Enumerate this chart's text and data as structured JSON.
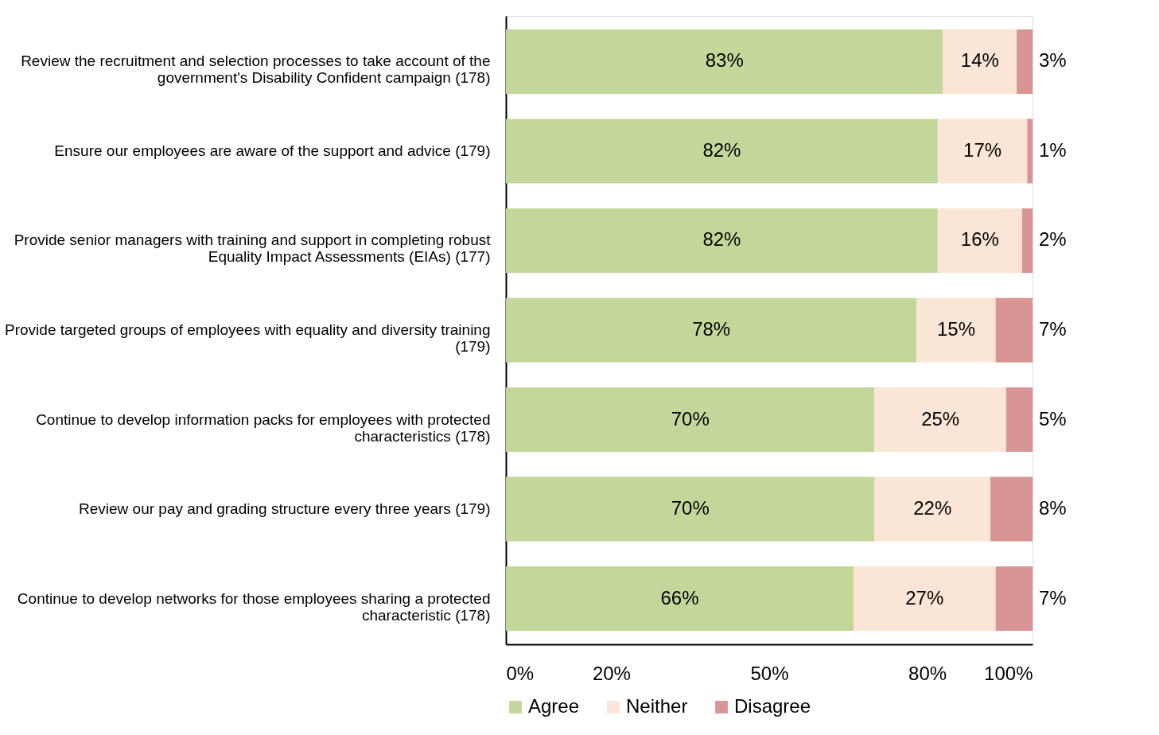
{
  "chart_data": {
    "type": "bar",
    "orientation": "horizontal",
    "stacked": true,
    "categories": [
      "Review the recruitment and selection processes to take account of the government's Disability Confident campaign (178)",
      "Ensure our employees are aware of the support and advice (179)",
      "Provide senior managers with training and support in completing robust Equality Impact Assessments (EIAs) (177)",
      "Provide targeted groups of employees with equality and diversity training (179)",
      "Continue to develop information packs for employees with protected characteristics (178)",
      "Review our pay and grading structure every three years (179)",
      "Continue to develop networks for those employees sharing a protected characteristic (178)"
    ],
    "series": [
      {
        "name": "Agree",
        "color": "#c4d79b",
        "values": [
          83,
          82,
          82,
          78,
          70,
          70,
          66
        ],
        "value_labels": [
          "83%",
          "82%",
          "82%",
          "78%",
          "70%",
          "70%",
          "66%"
        ]
      },
      {
        "name": "Neither",
        "color": "#fbe5d6",
        "values": [
          14,
          17,
          16,
          15,
          25,
          22,
          27
        ],
        "value_labels": [
          "14%",
          "17%",
          "16%",
          "15%",
          "25%",
          "22%",
          "27%"
        ]
      },
      {
        "name": "Disagree",
        "color": "#d99594",
        "values": [
          3,
          1,
          2,
          7,
          5,
          8,
          7
        ],
        "value_labels": [
          "3%",
          "1%",
          "2%",
          "7%",
          "5%",
          "8%",
          "7%"
        ]
      }
    ],
    "xlim": [
      0,
      100
    ],
    "xticks": [
      {
        "value": 0,
        "label": "0%"
      },
      {
        "value": 20,
        "label": "20%"
      },
      {
        "value": 50,
        "label": "50%"
      },
      {
        "value": 80,
        "label": "80%"
      },
      {
        "value": 100,
        "label": "100%"
      }
    ],
    "legend": "bottom",
    "grid": false
  }
}
